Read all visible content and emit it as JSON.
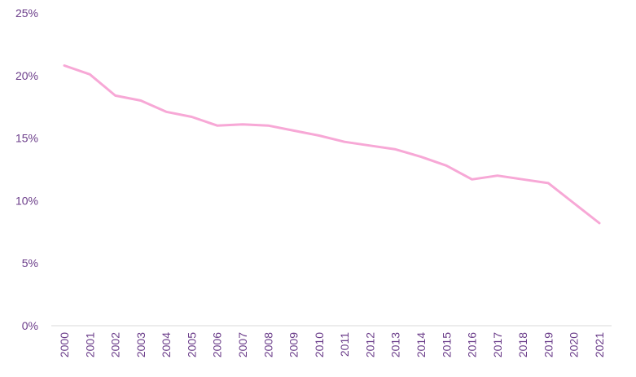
{
  "chart_data": {
    "type": "line",
    "title": "",
    "xlabel": "",
    "ylabel": "",
    "x": [
      "2000",
      "2001",
      "2002",
      "2003",
      "2004",
      "2005",
      "2006",
      "2007",
      "2008",
      "2009",
      "2010",
      "2011",
      "2012",
      "2013",
      "2014",
      "2015",
      "2016",
      "2017",
      "2018",
      "2019",
      "2020",
      "2021"
    ],
    "series": [
      {
        "values": [
          20.8,
          20.1,
          18.4,
          18.0,
          17.1,
          16.7,
          16.0,
          16.1,
          16.0,
          15.6,
          15.2,
          14.7,
          14.4,
          14.1,
          13.5,
          12.8,
          11.7,
          12.0,
          11.7,
          11.4,
          9.8,
          8.2
        ],
        "color": "#f7a8d6"
      }
    ],
    "y_ticks": [
      "0%",
      "5%",
      "10%",
      "15%",
      "20%",
      "25%"
    ],
    "y_tick_values": [
      0,
      5,
      10,
      15,
      20,
      25
    ],
    "ylim": [
      0,
      25
    ],
    "grid": false,
    "legend": "none",
    "axis_label_color": "#6b3d8a",
    "axis_line_color": "#d9d9d9"
  }
}
